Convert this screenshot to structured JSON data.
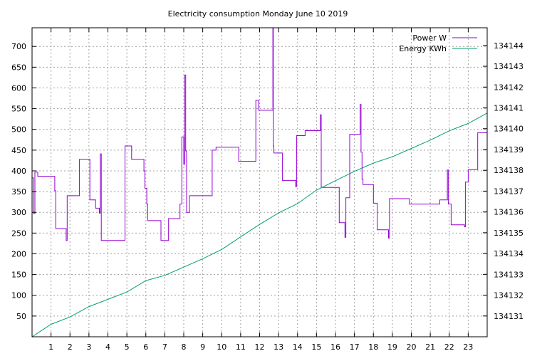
{
  "chart_data": {
    "type": "line",
    "title": "Electricity consumption Monday June 10 2019",
    "xlabel": "",
    "ylabel": "",
    "y2label": "",
    "xlim": [
      0,
      24
    ],
    "ylim": [
      0,
      745
    ],
    "y2lim": [
      134130.0,
      134144.85
    ],
    "grid": true,
    "legend_position": "top-right",
    "x_ticks": [
      1,
      2,
      3,
      4,
      5,
      6,
      7,
      8,
      9,
      10,
      11,
      12,
      13,
      14,
      15,
      16,
      17,
      18,
      19,
      20,
      21,
      22,
      23
    ],
    "y_ticks": [
      50,
      100,
      150,
      200,
      250,
      300,
      350,
      400,
      450,
      500,
      550,
      600,
      650,
      700
    ],
    "y2_ticks": [
      134131,
      134132,
      134133,
      134134,
      134135,
      134136,
      134137,
      134138,
      134139,
      134140,
      134141,
      134142,
      134143,
      134144
    ],
    "series": [
      {
        "name": "Power W",
        "axis": "y",
        "color": "#9400d3",
        "points": [
          [
            0.0,
            383
          ],
          [
            0.08,
            383
          ],
          [
            0.08,
            297
          ],
          [
            0.15,
            297
          ],
          [
            0.15,
            397
          ],
          [
            0.3,
            397
          ],
          [
            0.3,
            387
          ],
          [
            1.2,
            387
          ],
          [
            1.2,
            352
          ],
          [
            1.25,
            352
          ],
          [
            1.25,
            261
          ],
          [
            1.8,
            261
          ],
          [
            1.8,
            232
          ],
          [
            1.85,
            232
          ],
          [
            1.85,
            340
          ],
          [
            2.5,
            340
          ],
          [
            2.5,
            428
          ],
          [
            3.05,
            428
          ],
          [
            3.05,
            330
          ],
          [
            3.35,
            330
          ],
          [
            3.35,
            310
          ],
          [
            3.55,
            310
          ],
          [
            3.55,
            298
          ],
          [
            3.6,
            298
          ],
          [
            3.6,
            441
          ],
          [
            3.65,
            441
          ],
          [
            3.65,
            232
          ],
          [
            4.9,
            232
          ],
          [
            4.9,
            460
          ],
          [
            5.25,
            460
          ],
          [
            5.25,
            428
          ],
          [
            5.9,
            428
          ],
          [
            5.9,
            400
          ],
          [
            5.95,
            400
          ],
          [
            5.95,
            358
          ],
          [
            6.05,
            358
          ],
          [
            6.05,
            320
          ],
          [
            6.1,
            320
          ],
          [
            6.1,
            280
          ],
          [
            6.8,
            280
          ],
          [
            6.8,
            232
          ],
          [
            7.2,
            232
          ],
          [
            7.2,
            285
          ],
          [
            7.8,
            285
          ],
          [
            7.8,
            320
          ],
          [
            7.9,
            320
          ],
          [
            7.9,
            482
          ],
          [
            8.0,
            482
          ],
          [
            8.0,
            416
          ],
          [
            8.05,
            416
          ],
          [
            8.05,
            631
          ],
          [
            8.1,
            631
          ],
          [
            8.1,
            448
          ],
          [
            8.15,
            448
          ],
          [
            8.15,
            300
          ],
          [
            8.3,
            300
          ],
          [
            8.3,
            340
          ],
          [
            9.5,
            340
          ],
          [
            9.5,
            450
          ],
          [
            9.7,
            450
          ],
          [
            9.7,
            457
          ],
          [
            10.9,
            457
          ],
          [
            10.9,
            423
          ],
          [
            11.8,
            423
          ],
          [
            11.8,
            570
          ],
          [
            11.95,
            570
          ],
          [
            11.95,
            546
          ],
          [
            12.7,
            546
          ],
          [
            12.7,
            760
          ],
          [
            12.72,
            760
          ],
          [
            12.72,
            460
          ],
          [
            12.75,
            460
          ],
          [
            12.75,
            443
          ],
          [
            13.2,
            443
          ],
          [
            13.2,
            377
          ],
          [
            13.9,
            377
          ],
          [
            13.9,
            362
          ],
          [
            13.95,
            362
          ],
          [
            13.95,
            485
          ],
          [
            14.4,
            485
          ],
          [
            14.4,
            497
          ],
          [
            15.2,
            497
          ],
          [
            15.2,
            535
          ],
          [
            15.25,
            535
          ],
          [
            15.25,
            360
          ],
          [
            16.2,
            360
          ],
          [
            16.2,
            275
          ],
          [
            16.5,
            275
          ],
          [
            16.5,
            240
          ],
          [
            16.55,
            240
          ],
          [
            16.55,
            335
          ],
          [
            16.75,
            335
          ],
          [
            16.75,
            488
          ],
          [
            17.3,
            488
          ],
          [
            17.3,
            560
          ],
          [
            17.35,
            560
          ],
          [
            17.35,
            445
          ],
          [
            17.4,
            445
          ],
          [
            17.4,
            380
          ],
          [
            17.45,
            380
          ],
          [
            17.45,
            367
          ],
          [
            18.0,
            367
          ],
          [
            18.0,
            322
          ],
          [
            18.2,
            322
          ],
          [
            18.2,
            258
          ],
          [
            18.8,
            258
          ],
          [
            18.8,
            238
          ],
          [
            18.85,
            238
          ],
          [
            18.85,
            333
          ],
          [
            19.9,
            333
          ],
          [
            19.9,
            320
          ],
          [
            21.5,
            320
          ],
          [
            21.5,
            330
          ],
          [
            21.9,
            330
          ],
          [
            21.9,
            402
          ],
          [
            21.95,
            402
          ],
          [
            21.95,
            320
          ],
          [
            22.1,
            320
          ],
          [
            22.1,
            270
          ],
          [
            22.8,
            270
          ],
          [
            22.8,
            265
          ],
          [
            22.85,
            265
          ],
          [
            22.85,
            373
          ],
          [
            23.0,
            373
          ],
          [
            23.0,
            403
          ],
          [
            23.5,
            403
          ],
          [
            23.5,
            492
          ],
          [
            24.0,
            492
          ]
        ]
      },
      {
        "name": "Energy KWh",
        "axis": "y2",
        "color": "#009e73",
        "points": [
          [
            0.0,
            134130.0
          ],
          [
            1.0,
            134130.6
          ],
          [
            2.0,
            134130.95
          ],
          [
            3.0,
            134131.45
          ],
          [
            4.0,
            134131.8
          ],
          [
            5.0,
            134132.15
          ],
          [
            6.0,
            134132.7
          ],
          [
            7.0,
            134132.95
          ],
          [
            8.0,
            134133.35
          ],
          [
            9.0,
            134133.75
          ],
          [
            10.0,
            134134.2
          ],
          [
            11.0,
            134134.8
          ],
          [
            12.0,
            134135.4
          ],
          [
            13.0,
            134135.95
          ],
          [
            14.0,
            134136.4
          ],
          [
            15.0,
            134137.05
          ],
          [
            16.0,
            134137.5
          ],
          [
            17.0,
            134137.95
          ],
          [
            18.0,
            134138.35
          ],
          [
            19.0,
            134138.65
          ],
          [
            20.0,
            134139.05
          ],
          [
            21.0,
            134139.45
          ],
          [
            22.0,
            134139.9
          ],
          [
            23.0,
            134140.25
          ],
          [
            24.0,
            134140.75
          ]
        ]
      }
    ]
  }
}
